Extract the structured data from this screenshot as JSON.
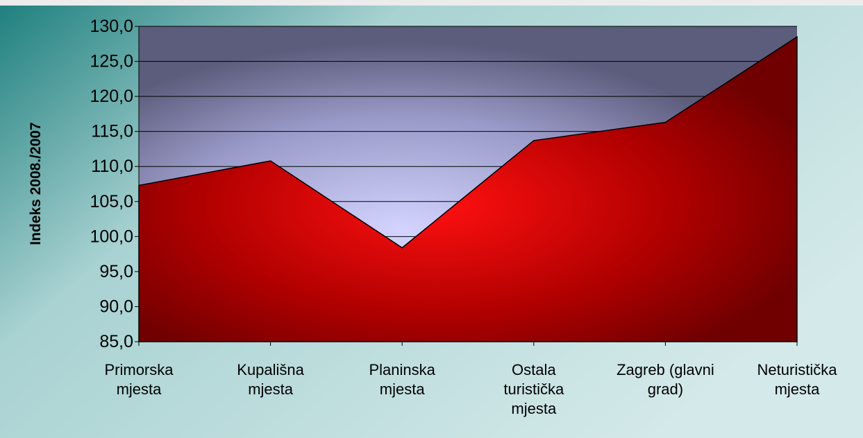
{
  "chart_data": {
    "type": "area",
    "y_axis_label": "Indeks 2008./2007",
    "categories": [
      "Primorska\nmjesta",
      "Kupališna\nmjesta",
      "Planinska\nmjesta",
      "Ostala\nturistička\nmjesta",
      "Zagreb (glavni\ngrad)",
      "Neturistička\nmjesta"
    ],
    "values": [
      107.3,
      110.8,
      98.4,
      113.7,
      116.3,
      128.5
    ],
    "color": "#c00000",
    "ylim": [
      85,
      130
    ],
    "yticks": [
      {
        "value": 85,
        "label": "85,0"
      },
      {
        "value": 90,
        "label": "90,0"
      },
      {
        "value": 95,
        "label": "95,0"
      },
      {
        "value": 100,
        "label": "100,0"
      },
      {
        "value": 105,
        "label": "105,0"
      },
      {
        "value": 110,
        "label": "110,0"
      },
      {
        "value": 115,
        "label": "115,0"
      },
      {
        "value": 120,
        "label": "120,0"
      },
      {
        "value": 125,
        "label": "125,0"
      },
      {
        "value": 130,
        "label": "130,0"
      }
    ],
    "grid": true
  }
}
